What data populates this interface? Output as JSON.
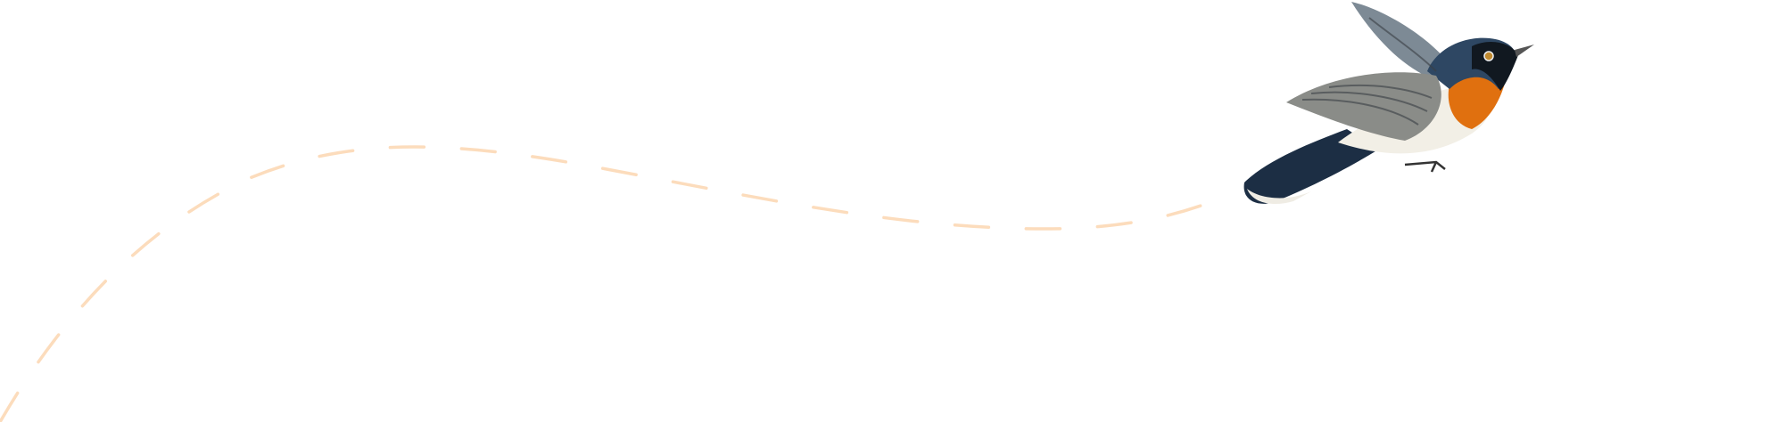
{
  "illustration": {
    "subject": "bird-in-flight",
    "colors": {
      "path": "#fcdcbc",
      "bird_head": "#2e4763",
      "bird_throat": "#e0700f",
      "bird_belly": "#f2efe6",
      "bird_wing": "#8a8c88",
      "bird_tail": "#1c2e44"
    }
  }
}
